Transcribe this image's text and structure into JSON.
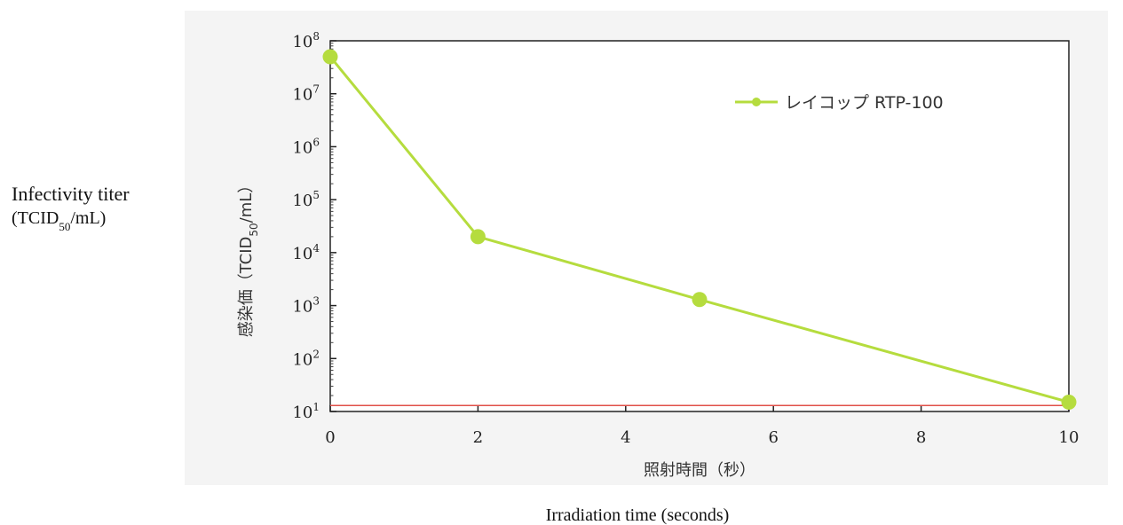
{
  "annotations": {
    "ylabel_en_main": "Infectivity titer",
    "ylabel_en_unit_prefix": "(TCID",
    "ylabel_en_unit_sub": "50",
    "ylabel_en_unit_suffix": "/mL)",
    "xlabel_en": "Irradiation time (seconds)"
  },
  "chart_data": {
    "type": "line",
    "xlabel": "照射時間（秒）",
    "ylabel_prefix": "感染価（TCID",
    "ylabel_sub": "50",
    "ylabel_suffix": "/mL）",
    "xlim": [
      0,
      10
    ],
    "ylim_log10": [
      1,
      8
    ],
    "y_scale": "log",
    "x_ticks": [
      0,
      2,
      4,
      6,
      8,
      10
    ],
    "y_ticks": [
      {
        "exp": 8,
        "base": "10",
        "sup": "8"
      },
      {
        "exp": 7,
        "base": "10",
        "sup": "7"
      },
      {
        "exp": 6,
        "base": "10",
        "sup": "6"
      },
      {
        "exp": 5,
        "base": "10",
        "sup": "5"
      },
      {
        "exp": 4,
        "base": "10",
        "sup": "4"
      },
      {
        "exp": 3,
        "base": "10",
        "sup": "3"
      },
      {
        "exp": 2,
        "base": "10",
        "sup": "2"
      },
      {
        "exp": 1,
        "base": "10",
        "sup": "1"
      }
    ],
    "series": [
      {
        "name": "レイコップ RTP-100",
        "color": "#b5dc3e",
        "x": [
          0,
          2,
          5,
          10
        ],
        "y": [
          50000000,
          20000,
          1300,
          15
        ]
      }
    ],
    "detection_limit": {
      "y": 13,
      "color": "#e0504a"
    },
    "legend": "top-right",
    "grid": false
  }
}
